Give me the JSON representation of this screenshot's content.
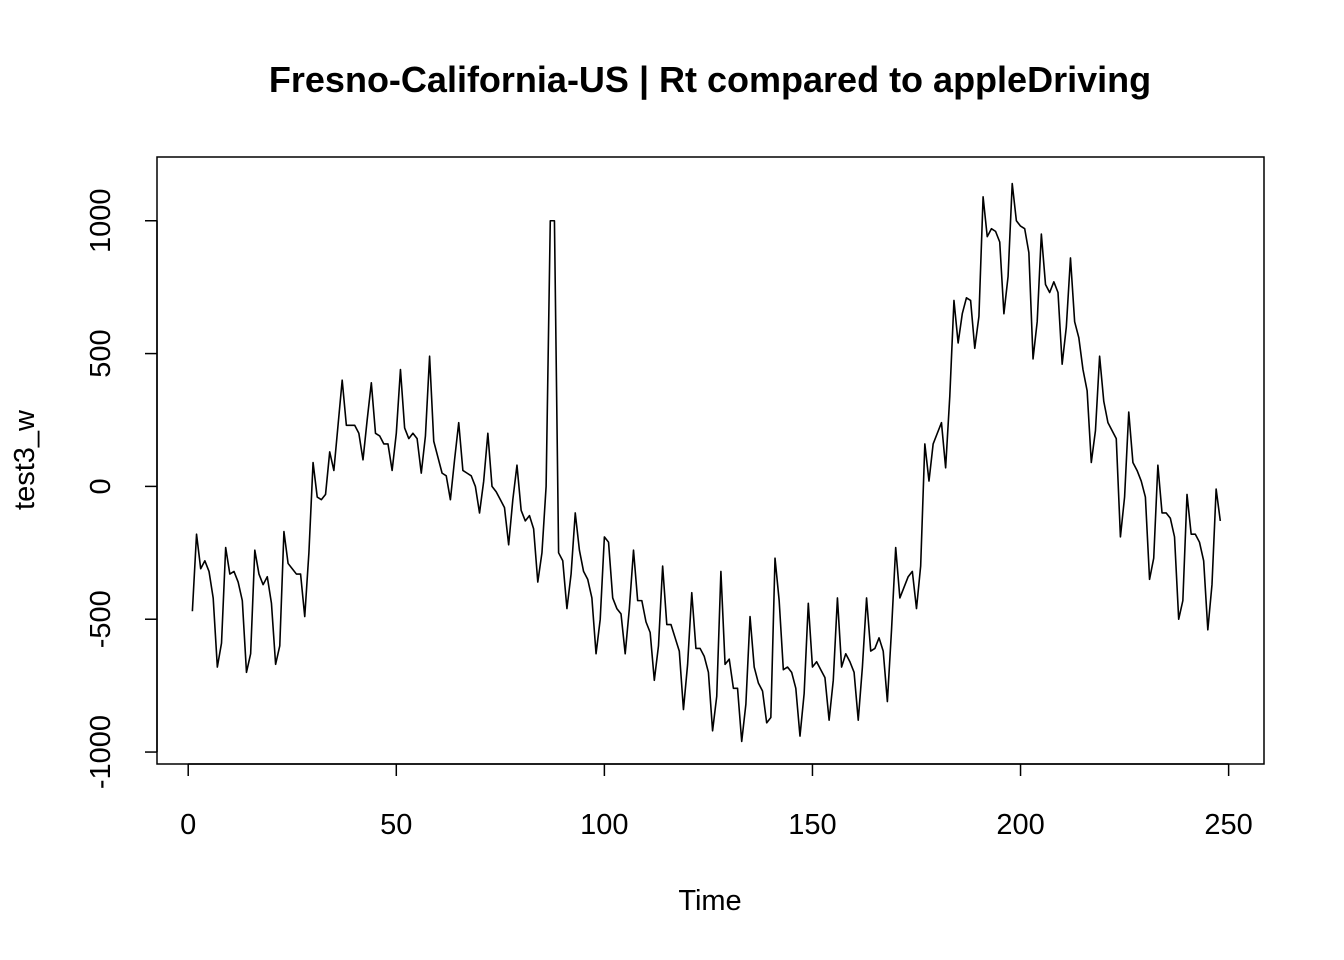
{
  "chart_data": {
    "type": "line",
    "title": "Fresno-California-US | Rt compared to appleDriving",
    "xlabel": "Time",
    "ylabel": "test3_w",
    "xlim": [
      -7.5,
      258.5
    ],
    "ylim": [
      -1045,
      1240
    ],
    "xticks": [
      0,
      50,
      100,
      150,
      200,
      250
    ],
    "xtick_labels": [
      "0",
      "50",
      "100",
      "150",
      "200",
      "250"
    ],
    "yticks": [
      -1000,
      -500,
      0,
      500,
      1000
    ],
    "ytick_labels": [
      "-1000",
      "-500",
      "0",
      "500",
      "1000"
    ],
    "grid": false,
    "line_color": "#000000",
    "series": [
      {
        "x": [
          1,
          2,
          3,
          4,
          5,
          6,
          7,
          8,
          9,
          10,
          11,
          12,
          13,
          14,
          15,
          16,
          17,
          18,
          19,
          20,
          21,
          22,
          23,
          24,
          25,
          26,
          27,
          28,
          29,
          30,
          31,
          32,
          33,
          34,
          35,
          36,
          37,
          38,
          39,
          40,
          41,
          42,
          43,
          44,
          45,
          46,
          47,
          48,
          49,
          50,
          51,
          52,
          53,
          54,
          55,
          56,
          57,
          58,
          59,
          60,
          61,
          62,
          63,
          64,
          65,
          66,
          67,
          68,
          69,
          70,
          71,
          72,
          73,
          74,
          75,
          76,
          77,
          78,
          79,
          80,
          81,
          82,
          83,
          84,
          85,
          86,
          87,
          88,
          89,
          90,
          91,
          92,
          93,
          94,
          95,
          96,
          97,
          98,
          99,
          100,
          101,
          102,
          103,
          104,
          105,
          106,
          107,
          108,
          109,
          110,
          111,
          112,
          113,
          114,
          115,
          116,
          117,
          118,
          119,
          120,
          121,
          122,
          123,
          124,
          125,
          126,
          127,
          128,
          129,
          130,
          131,
          132,
          133,
          134,
          135,
          136,
          137,
          138,
          139,
          140,
          141,
          142,
          143,
          144,
          145,
          146,
          147,
          148,
          149,
          150,
          151,
          152,
          153,
          154,
          155,
          156,
          157,
          158,
          159,
          160,
          161,
          162,
          163,
          164,
          165,
          166,
          167,
          168,
          169,
          170,
          171,
          172,
          173,
          174,
          175,
          176,
          177,
          178,
          179,
          180,
          181,
          182,
          183,
          184,
          185,
          186,
          187,
          188,
          189,
          190,
          191,
          192,
          193,
          194,
          195,
          196,
          197,
          198,
          199,
          200,
          201,
          202,
          203,
          204,
          205,
          206,
          207,
          208,
          209,
          210,
          211,
          212,
          213,
          214,
          215,
          216,
          217,
          218,
          219,
          220,
          221,
          222,
          223,
          224,
          225,
          226,
          227,
          228,
          229,
          230,
          231,
          232,
          233,
          234,
          235,
          236,
          237,
          238,
          239,
          240,
          241,
          242,
          243,
          244,
          245,
          246,
          247,
          248
        ],
        "values": [
          -470,
          -180,
          -310,
          -280,
          -320,
          -420,
          -680,
          -590,
          -230,
          -330,
          -320,
          -360,
          -430,
          -700,
          -630,
          -240,
          -330,
          -370,
          -340,
          -440,
          -670,
          -600,
          -170,
          -290,
          -310,
          -330,
          -330,
          -490,
          -250,
          90,
          -40,
          -50,
          -30,
          130,
          60,
          230,
          400,
          230,
          230,
          230,
          200,
          100,
          250,
          390,
          200,
          190,
          160,
          160,
          60,
          200,
          440,
          220,
          180,
          200,
          180,
          50,
          190,
          490,
          170,
          110,
          50,
          40,
          -50,
          100,
          240,
          60,
          50,
          40,
          0,
          -100,
          20,
          200,
          0,
          -20,
          -50,
          -80,
          -220,
          -50,
          80,
          -90,
          -130,
          -110,
          -160,
          -360,
          -250,
          0,
          1000,
          1000,
          -250,
          -280,
          -460,
          -330,
          -100,
          -240,
          -320,
          -350,
          -420,
          -630,
          -500,
          -190,
          -210,
          -420,
          -460,
          -480,
          -630,
          -460,
          -240,
          -430,
          -430,
          -510,
          -550,
          -730,
          -600,
          -300,
          -520,
          -520,
          -570,
          -620,
          -840,
          -670,
          -400,
          -610,
          -610,
          -640,
          -700,
          -920,
          -790,
          -320,
          -670,
          -650,
          -760,
          -760,
          -960,
          -820,
          -490,
          -680,
          -740,
          -770,
          -890,
          -870,
          -270,
          -430,
          -690,
          -680,
          -700,
          -760,
          -940,
          -780,
          -440,
          -680,
          -660,
          -690,
          -720,
          -880,
          -730,
          -420,
          -680,
          -630,
          -660,
          -700,
          -880,
          -680,
          -420,
          -620,
          -610,
          -570,
          -620,
          -810,
          -540,
          -230,
          -420,
          -380,
          -340,
          -320,
          -460,
          -300,
          160,
          20,
          160,
          200,
          240,
          70,
          340,
          700,
          540,
          650,
          710,
          700,
          520,
          640,
          1090,
          940,
          970,
          960,
          920,
          650,
          790,
          1140,
          1000,
          980,
          970,
          880,
          480,
          620,
          950,
          760,
          730,
          770,
          730,
          460,
          600,
          860,
          620,
          560,
          440,
          360,
          90,
          210,
          490,
          320,
          240,
          210,
          180,
          -190,
          -40,
          280,
          90,
          60,
          20,
          -40,
          -350,
          -270,
          80,
          -100,
          -100,
          -120,
          -190,
          -500,
          -430,
          -30,
          -180,
          -180,
          -210,
          -280,
          -540,
          -370,
          -10,
          -130
        ]
      }
    ]
  }
}
